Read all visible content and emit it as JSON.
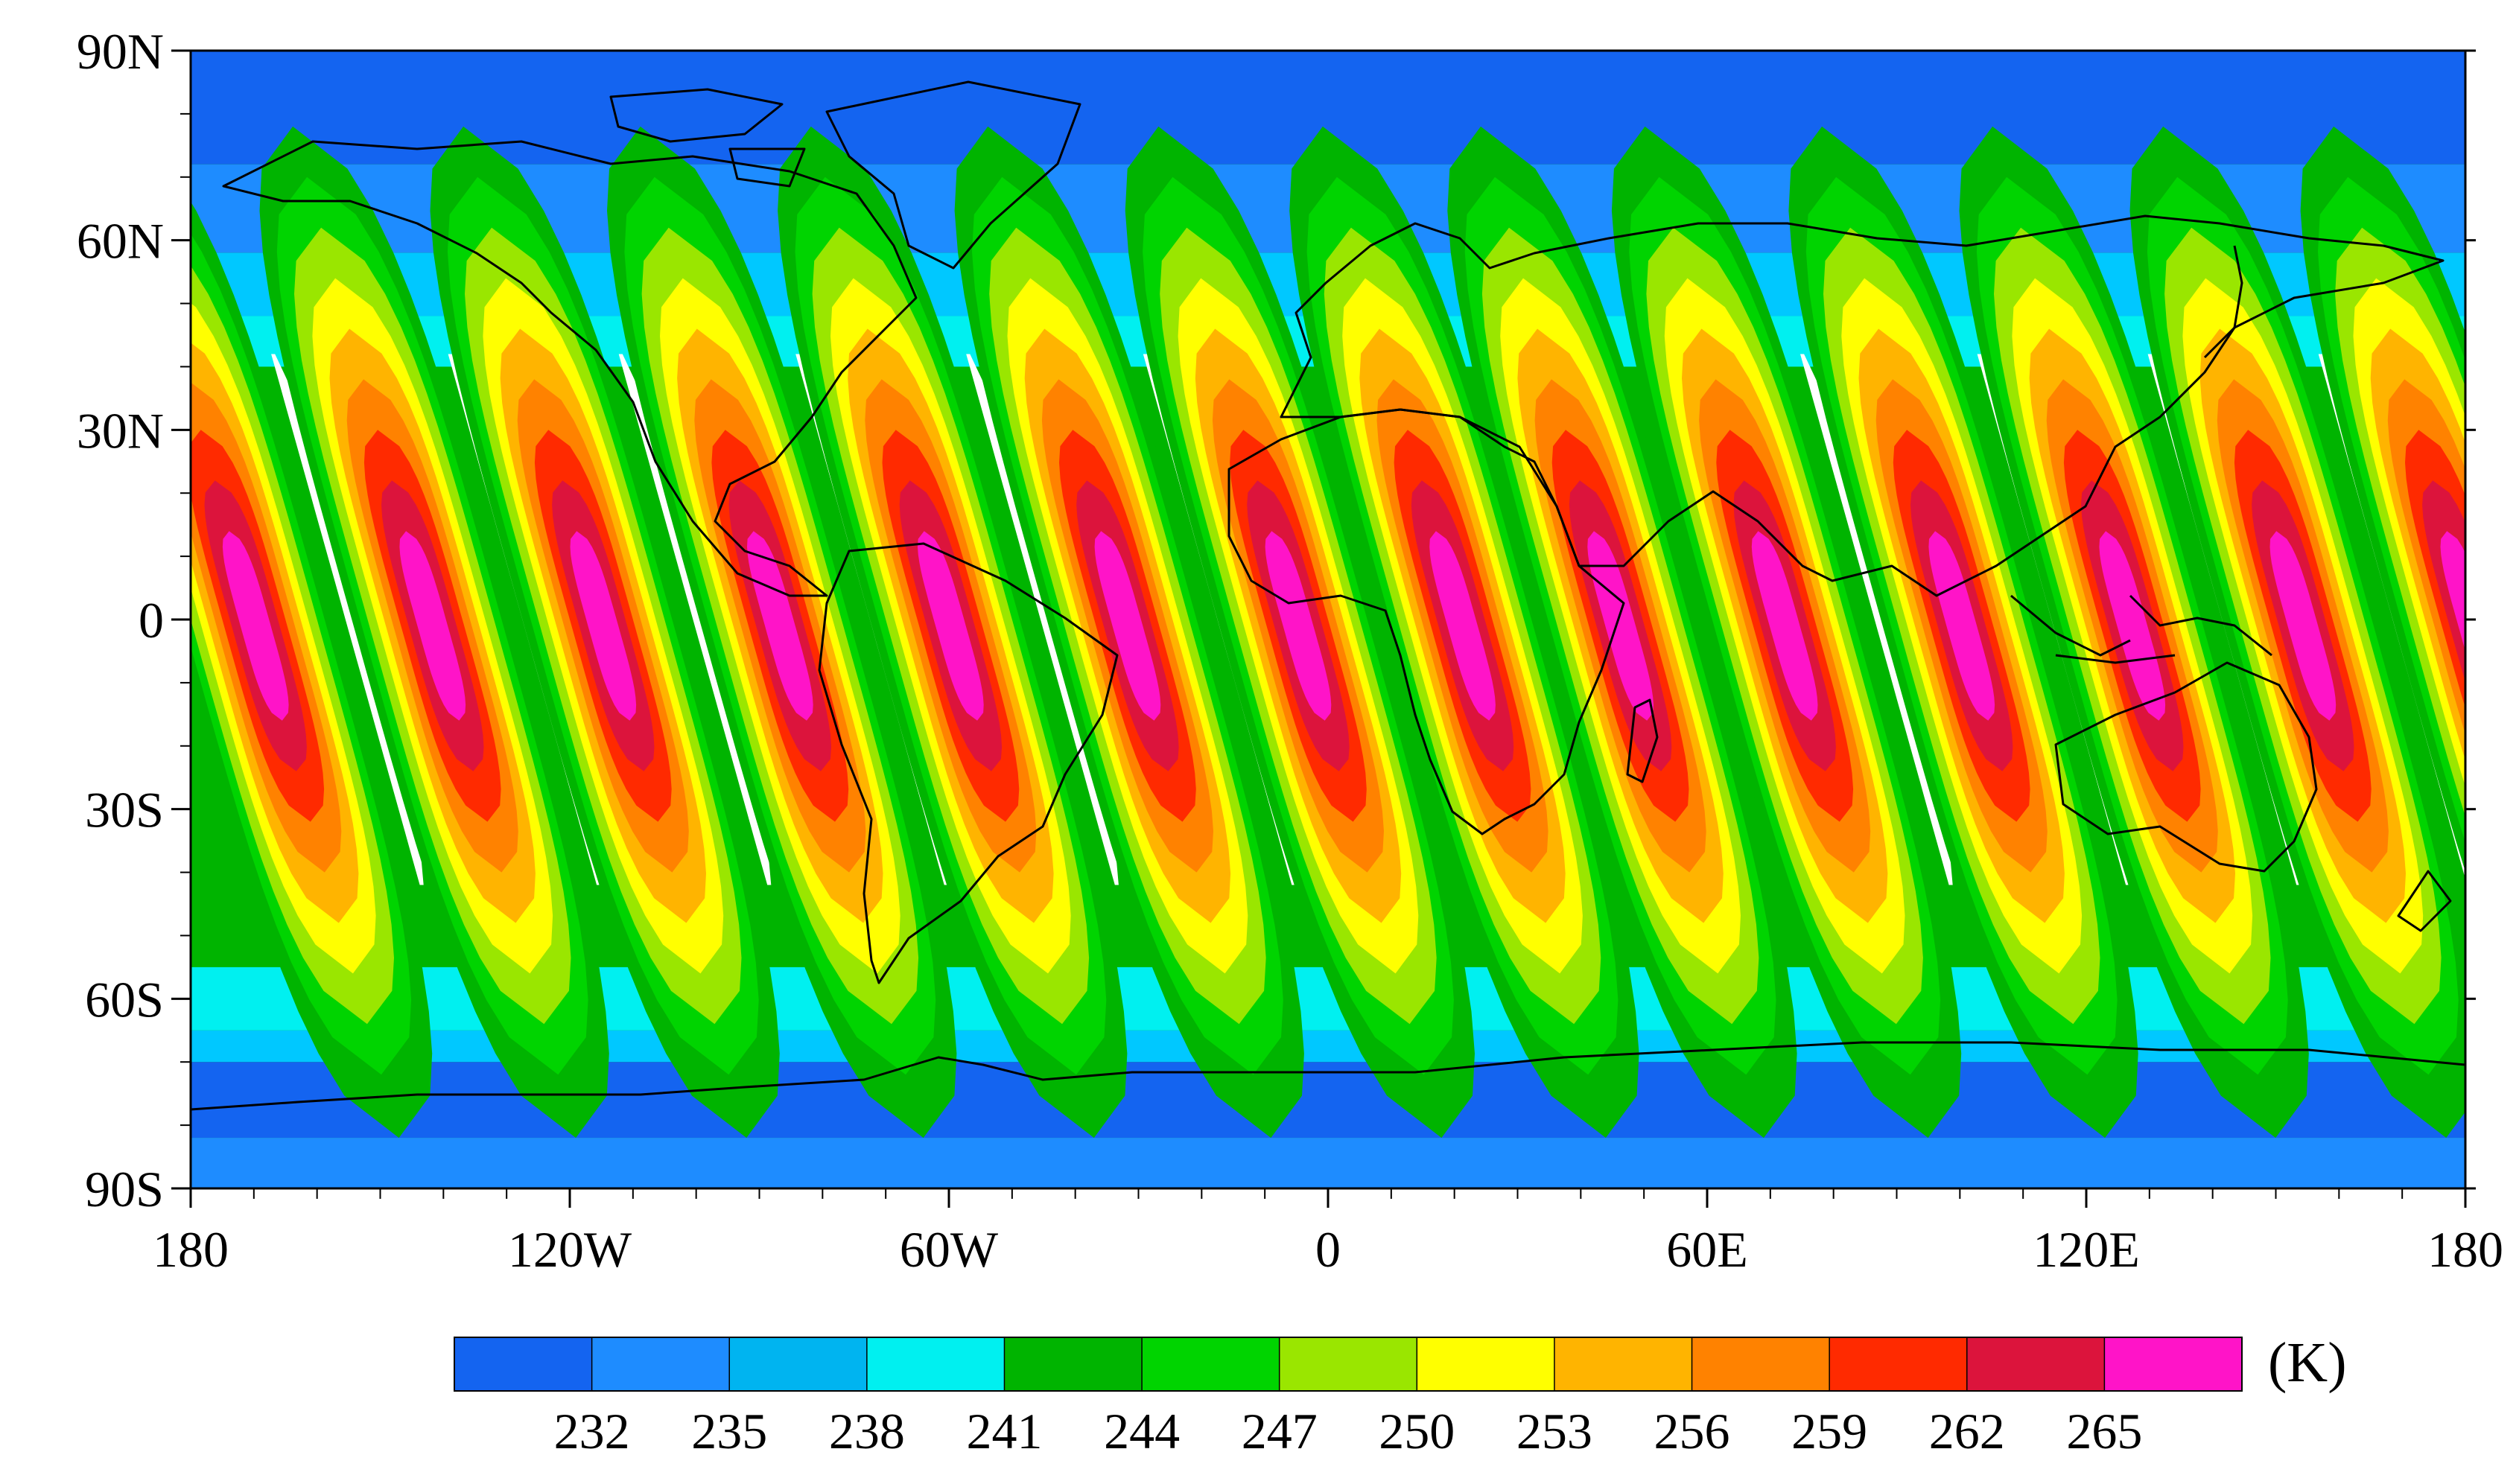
{
  "map": {
    "lat_labels": [
      "90N",
      "60N",
      "30N",
      "0",
      "30S",
      "60S",
      "90S"
    ],
    "lon_labels": [
      "180",
      "120W",
      "60W",
      "0",
      "60E",
      "120E",
      "180"
    ],
    "lat_range": [
      -90,
      90
    ],
    "lon_range": [
      -180,
      180
    ],
    "swath_center_lons": [
      -170,
      -142,
      -115,
      -87,
      -60,
      -32,
      -5,
      21,
      46,
      72,
      100,
      127,
      154,
      181
    ],
    "swath_slant_deg_per_deg_lat": 0.28,
    "band_colors": [
      "#ffffff",
      "#00b400",
      "#00d400",
      "#9ae600",
      "#ffff00",
      "#ffb400",
      "#ff8200",
      "#ff2a00",
      "#dc143c",
      "#ff14c8"
    ],
    "background_colors": [
      "#1464f0",
      "#1e8cff",
      "#00c8ff",
      "#00f0f0",
      "#00b400"
    ]
  },
  "colorbar": {
    "unit_label": "(K)",
    "colors": [
      "#1464f0",
      "#1e8cff",
      "#00b4f0",
      "#00f0f0",
      "#00b400",
      "#00d400",
      "#9ae600",
      "#ffff00",
      "#ffb400",
      "#ff8200",
      "#ff2a00",
      "#dc143c",
      "#ff14c8"
    ],
    "tick_labels": [
      "232",
      "235",
      "238",
      "241",
      "244",
      "247",
      "250",
      "253",
      "256",
      "259",
      "262",
      "265"
    ]
  }
}
